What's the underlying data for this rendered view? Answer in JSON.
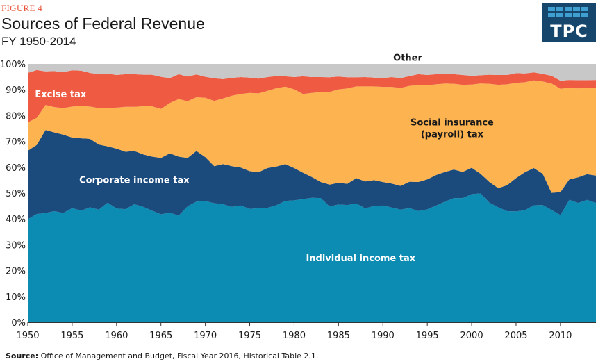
{
  "figure_label": "FIGURE 4",
  "logo": {
    "text": "TPC"
  },
  "source": {
    "label": "Source:",
    "text": "Office of Management and Budget, Fiscal Year 2016, Historical Table 2.1."
  },
  "chart_data": {
    "type": "area",
    "stacking": "percent",
    "title": "Sources of Federal Revenue",
    "subtitle": "FY 1950-2014",
    "x": [
      1950,
      1951,
      1952,
      1953,
      1954,
      1955,
      1956,
      1957,
      1958,
      1959,
      1960,
      1961,
      1962,
      1963,
      1964,
      1965,
      1966,
      1967,
      1968,
      1969,
      1970,
      1971,
      1972,
      1973,
      1974,
      1975,
      1976,
      1977,
      1978,
      1979,
      1980,
      1981,
      1982,
      1983,
      1984,
      1985,
      1986,
      1987,
      1988,
      1989,
      1990,
      1991,
      1992,
      1993,
      1994,
      1995,
      1996,
      1997,
      1998,
      1999,
      2000,
      2001,
      2002,
      2003,
      2004,
      2005,
      2006,
      2007,
      2008,
      2009,
      2010,
      2011,
      2012,
      2013,
      2014
    ],
    "x_ticks": [
      "1950",
      "1955",
      "1960",
      "1965",
      "1970",
      "1975",
      "1980",
      "1985",
      "1990",
      "1995",
      "2000",
      "2005",
      "2010"
    ],
    "x_tick_values": [
      1950,
      1955,
      1960,
      1965,
      1970,
      1975,
      1980,
      1985,
      1990,
      1995,
      2000,
      2005,
      2010
    ],
    "xlim": [
      1950,
      2014
    ],
    "ylim": [
      0,
      100
    ],
    "y_ticks": [
      "0%",
      "10%",
      "20%",
      "30%",
      "40%",
      "50%",
      "60%",
      "70%",
      "80%",
      "90%",
      "100%"
    ],
    "y_tick_values": [
      0,
      10,
      20,
      30,
      40,
      50,
      60,
      70,
      80,
      90,
      100
    ],
    "series": [
      {
        "name": "Individual income tax",
        "color": "#0c8bb3",
        "values": [
          39.9,
          41.9,
          42.3,
          43.0,
          42.3,
          44.2,
          43.2,
          44.5,
          43.6,
          46.3,
          44.0,
          43.8,
          45.7,
          44.7,
          43.2,
          41.8,
          42.4,
          41.3,
          44.9,
          46.7,
          46.9,
          46.1,
          45.7,
          44.7,
          45.2,
          43.9,
          44.2,
          44.3,
          45.3,
          47.0,
          47.2,
          47.7,
          48.2,
          48.1,
          44.8,
          45.6,
          45.4,
          46.0,
          44.1,
          45.0,
          45.2,
          44.4,
          43.6,
          44.2,
          43.1,
          43.7,
          45.2,
          46.7,
          48.1,
          48.1,
          49.6,
          49.9,
          46.3,
          44.5,
          43.0,
          42.9,
          43.4,
          45.3,
          45.4,
          43.5,
          41.5,
          47.4,
          46.2,
          47.4,
          46.2
        ]
      },
      {
        "name": "Corporate income tax",
        "color": "#1b4a7d",
        "values": [
          26.5,
          26.7,
          32.1,
          30.5,
          30.3,
          27.3,
          28.0,
          26.5,
          25.2,
          21.8,
          23.2,
          22.2,
          20.6,
          20.3,
          20.9,
          21.8,
          23.0,
          22.8,
          18.7,
          19.6,
          17.0,
          14.3,
          15.5,
          15.7,
          14.7,
          14.6,
          13.9,
          15.4,
          15.0,
          14.2,
          12.5,
          10.2,
          8.0,
          6.2,
          8.5,
          8.4,
          8.2,
          9.8,
          10.4,
          10.0,
          9.1,
          9.3,
          9.2,
          10.2,
          11.2,
          11.6,
          11.8,
          11.5,
          11.0,
          10.1,
          10.2,
          7.6,
          8.0,
          7.4,
          10.1,
          12.9,
          14.7,
          14.4,
          12.1,
          6.6,
          8.9,
          7.9,
          9.9,
          9.9,
          10.6
        ]
      },
      {
        "name": "Social insurance (payroll) tax",
        "color": "#fcb350",
        "values": [
          11.0,
          10.5,
          9.7,
          9.8,
          10.3,
          12.0,
          12.5,
          12.5,
          14.1,
          14.8,
          15.9,
          17.4,
          17.1,
          18.6,
          19.5,
          19.0,
          19.5,
          22.3,
          22.0,
          20.8,
          23.0,
          25.3,
          25.4,
          27.3,
          28.5,
          30.3,
          30.5,
          29.9,
          30.3,
          30.0,
          30.5,
          30.5,
          32.6,
          34.8,
          35.9,
          36.1,
          36.9,
          35.5,
          36.8,
          36.3,
          36.8,
          37.4,
          37.9,
          37.1,
          37.5,
          36.4,
          35.1,
          34.2,
          33.2,
          33.7,
          32.2,
          34.9,
          38.0,
          40.0,
          39.0,
          36.9,
          34.8,
          33.9,
          35.7,
          42.3,
          40.0,
          35.5,
          34.4,
          33.4,
          34.0
        ]
      },
      {
        "name": "Excise tax",
        "color": "#ef5a43",
        "values": [
          19.1,
          18.5,
          13.0,
          13.9,
          13.9,
          14.0,
          13.7,
          13.0,
          13.1,
          13.3,
          12.6,
          12.6,
          12.6,
          12.2,
          12.2,
          12.4,
          9.6,
          9.6,
          9.5,
          8.8,
          8.1,
          8.7,
          7.5,
          6.9,
          6.5,
          5.9,
          5.7,
          5.3,
          4.7,
          4.0,
          4.7,
          6.8,
          6.1,
          5.8,
          5.6,
          5.0,
          4.3,
          3.5,
          3.6,
          3.4,
          3.4,
          3.8,
          3.8,
          3.8,
          4.2,
          4.0,
          3.9,
          3.8,
          3.7,
          3.8,
          3.4,
          3.2,
          3.5,
          3.8,
          3.6,
          3.7,
          3.4,
          3.1,
          2.9,
          3.0,
          3.1,
          3.0,
          3.2,
          3.0,
          3.0
        ]
      },
      {
        "name": "Other",
        "color": "#c8c8c8",
        "values": [
          3.5,
          2.4,
          2.9,
          2.8,
          3.2,
          2.5,
          2.6,
          3.5,
          4.0,
          3.8,
          4.3,
          4.0,
          4.0,
          4.2,
          4.2,
          5.0,
          5.5,
          4.0,
          4.9,
          4.1,
          5.0,
          5.6,
          5.9,
          5.4,
          5.1,
          5.3,
          5.7,
          5.1,
          4.7,
          4.8,
          5.1,
          4.8,
          5.1,
          5.1,
          5.2,
          4.9,
          5.2,
          5.2,
          5.1,
          5.3,
          5.5,
          5.1,
          5.5,
          4.7,
          4.0,
          4.3,
          4.0,
          3.8,
          4.0,
          4.3,
          4.6,
          4.4,
          4.2,
          4.3,
          4.3,
          3.6,
          3.7,
          3.3,
          3.9,
          4.6,
          6.5,
          6.2,
          6.3,
          6.3,
          6.2
        ]
      }
    ],
    "annotations": [
      {
        "series": "Excise tax",
        "text": "Excise tax",
        "x": 1953.7,
        "y": 88.5,
        "color": "#ffffff"
      },
      {
        "series": "Social insurance (payroll) tax",
        "text": "Social insurance",
        "x": 1997.8,
        "y": 77.5,
        "color": "#1a1a1a"
      },
      {
        "series": "Social insurance (payroll) tax",
        "text": "(payroll) tax",
        "x": 1997.8,
        "y": 73.0,
        "color": "#1a1a1a"
      },
      {
        "series": "Corporate income tax",
        "text": "Corporate income tax",
        "x": 1962.0,
        "y": 55.2,
        "color": "#ffffff"
      },
      {
        "series": "Individual income tax",
        "text": "Individual income tax",
        "x": 1987.5,
        "y": 25.0,
        "color": "#ffffff"
      },
      {
        "series": "Other",
        "text": "Other",
        "x": 1992.8,
        "y": 102.5,
        "color": "#1a1a1a"
      }
    ]
  }
}
